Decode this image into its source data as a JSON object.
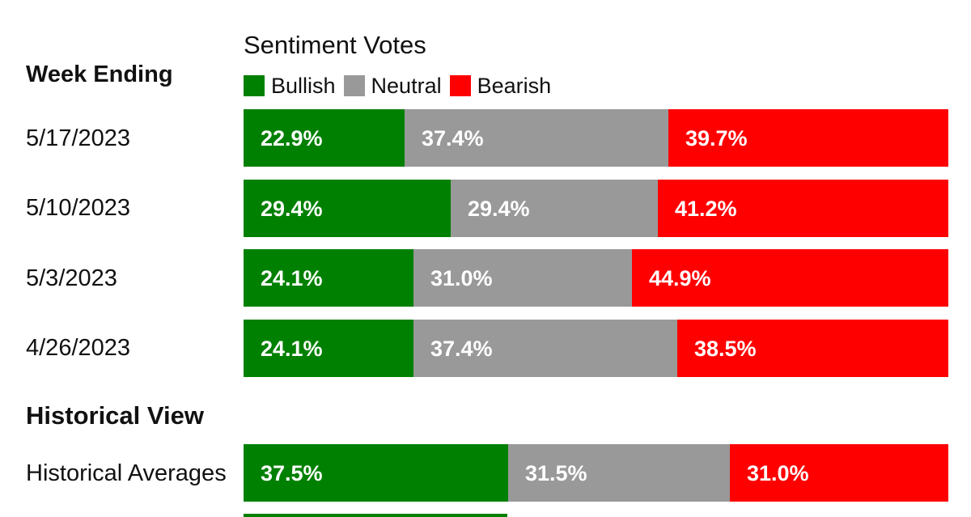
{
  "chart_data": {
    "type": "bar",
    "orientation": "horizontal",
    "stacked": true,
    "title": "Sentiment Votes",
    "colors": {
      "Bullish": "#008000",
      "Neutral": "#999999",
      "Bearish": "#ff0000"
    },
    "legend": {
      "placement": "top",
      "items": [
        "Bullish",
        "Neutral",
        "Bearish"
      ]
    },
    "sections": [
      {
        "heading": "Week Ending",
        "rows": [
          {
            "label": "5/17/2023",
            "values": [
              22.9,
              37.4,
              39.7
            ],
            "labels": [
              "22.9%",
              "37.4%",
              "39.7%"
            ]
          },
          {
            "label": "5/10/2023",
            "values": [
              29.4,
              29.4,
              41.2
            ],
            "labels": [
              "29.4%",
              "29.4%",
              "41.2%"
            ]
          },
          {
            "label": "5/3/2023",
            "values": [
              24.1,
              31.0,
              44.9
            ],
            "labels": [
              "24.1%",
              "31.0%",
              "44.9%"
            ]
          },
          {
            "label": "4/26/2023",
            "values": [
              24.1,
              37.4,
              38.5
            ],
            "labels": [
              "24.1%",
              "37.4%",
              "38.5%"
            ]
          }
        ]
      },
      {
        "heading": "Historical View",
        "rows": [
          {
            "label": "Historical Averages",
            "values": [
              37.5,
              31.5,
              31.0
            ],
            "labels": [
              "37.5%",
              "31.5%",
              "31.0%"
            ]
          }
        ]
      }
    ],
    "xlim": [
      0,
      100
    ],
    "grid": false
  }
}
